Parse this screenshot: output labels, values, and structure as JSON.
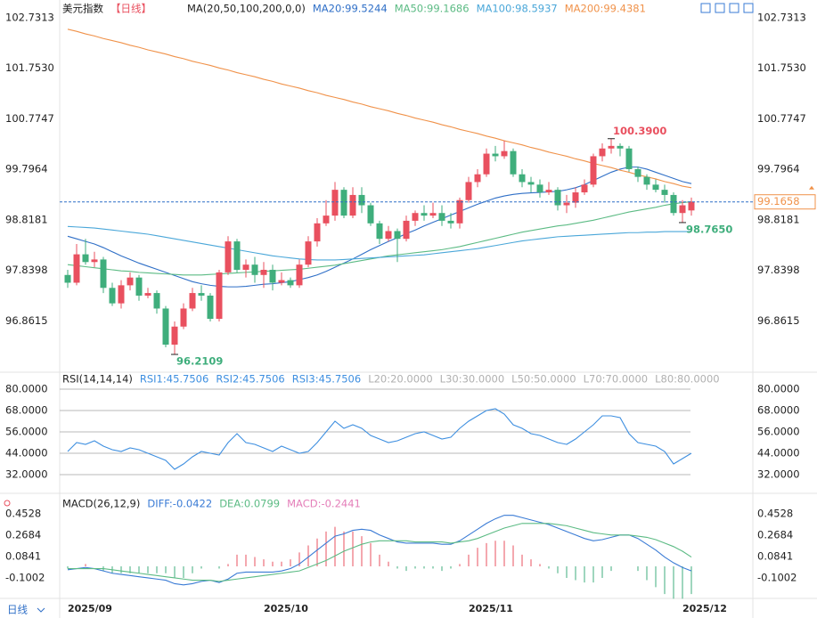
{
  "chart_data": [
    {
      "type": "candlestick",
      "title": "美元指数",
      "subtitle": "【日线】",
      "indicator": "MA(20,50,100,200,0,0)",
      "categories": [
        "2025/09",
        null,
        null,
        null,
        null,
        null,
        null,
        null,
        null,
        null,
        null,
        null,
        null,
        null,
        null,
        null,
        null,
        null,
        null,
        null,
        null,
        null,
        "2025/10",
        null,
        null,
        null,
        null,
        null,
        null,
        null,
        null,
        null,
        null,
        null,
        null,
        null,
        null,
        null,
        null,
        null,
        null,
        null,
        null,
        null,
        null,
        "2025/11",
        null,
        null,
        null,
        null,
        null,
        null,
        null,
        null,
        null,
        null,
        null,
        null,
        null,
        null,
        null,
        null,
        null,
        null,
        null,
        null,
        null,
        null,
        null,
        "2025/12",
        null
      ],
      "open": [
        97.75,
        97.6,
        98.15,
        98.0,
        98.05,
        97.5,
        97.2,
        97.55,
        97.7,
        97.35,
        97.4,
        97.1,
        96.4,
        96.75,
        97.1,
        97.4,
        97.35,
        96.9,
        97.8,
        98.4,
        97.85,
        97.95,
        97.75,
        97.85,
        97.6,
        97.65,
        97.55,
        97.95,
        98.4,
        98.75,
        98.9,
        99.4,
        98.9,
        99.3,
        99.1,
        98.75,
        98.45,
        98.6,
        98.45,
        98.8,
        98.95,
        98.9,
        98.95,
        98.8,
        98.75,
        99.2,
        99.55,
        99.7,
        100.1,
        100.05,
        100.15,
        99.7,
        99.55,
        99.5,
        99.35,
        99.4,
        99.1,
        99.15,
        99.35,
        99.5,
        100.05,
        100.2,
        100.25,
        100.2,
        99.8,
        99.65,
        99.5,
        99.4,
        99.3,
        98.95,
        99.0
      ],
      "high": [
        97.85,
        98.35,
        98.45,
        98.2,
        98.1,
        97.6,
        97.65,
        97.8,
        97.75,
        97.5,
        97.45,
        97.15,
        96.85,
        97.2,
        97.5,
        97.55,
        97.4,
        97.85,
        98.5,
        98.45,
        98.05,
        98.1,
        98.0,
        97.95,
        97.8,
        97.7,
        98.05,
        98.5,
        98.85,
        99.2,
        99.55,
        99.45,
        99.45,
        99.45,
        99.15,
        98.8,
        98.7,
        98.65,
        98.9,
        99.0,
        99.1,
        99.15,
        99.1,
        98.95,
        99.25,
        99.65,
        99.8,
        100.2,
        100.25,
        100.35,
        100.2,
        99.8,
        99.65,
        99.6,
        99.55,
        99.45,
        99.3,
        99.45,
        99.6,
        100.1,
        100.3,
        100.39,
        100.3,
        100.25,
        99.85,
        99.7,
        99.6,
        99.5,
        99.35,
        99.2,
        99.25
      ],
      "low": [
        97.5,
        97.55,
        97.95,
        97.9,
        97.4,
        97.15,
        97.1,
        97.45,
        97.25,
        97.3,
        97.0,
        96.35,
        96.2109,
        96.7,
        97.05,
        97.25,
        96.85,
        96.85,
        97.75,
        97.8,
        97.7,
        97.6,
        97.5,
        97.45,
        97.55,
        97.5,
        97.5,
        97.9,
        98.3,
        98.7,
        98.8,
        98.85,
        98.85,
        98.95,
        98.7,
        98.35,
        98.4,
        98.0,
        98.4,
        98.7,
        98.8,
        98.85,
        98.7,
        98.65,
        98.65,
        99.15,
        99.45,
        99.65,
        99.95,
        100.0,
        99.65,
        99.45,
        99.35,
        99.25,
        99.3,
        99.0,
        98.95,
        99.05,
        99.3,
        99.45,
        99.95,
        100.1,
        100.05,
        99.75,
        99.55,
        99.4,
        99.35,
        99.15,
        98.9,
        98.765,
        98.9
      ],
      "close": [
        97.6,
        98.15,
        98.0,
        98.05,
        97.5,
        97.2,
        97.55,
        97.7,
        97.35,
        97.4,
        97.1,
        96.4,
        96.75,
        97.1,
        97.4,
        97.35,
        96.9,
        97.8,
        98.4,
        97.85,
        97.95,
        97.75,
        97.85,
        97.6,
        97.65,
        97.55,
        97.95,
        98.4,
        98.75,
        98.9,
        99.4,
        98.9,
        99.3,
        99.1,
        98.75,
        98.45,
        98.6,
        98.45,
        98.8,
        98.95,
        98.9,
        98.95,
        98.8,
        98.75,
        99.2,
        99.55,
        99.7,
        100.1,
        100.05,
        100.15,
        99.7,
        99.55,
        99.5,
        99.35,
        99.4,
        99.1,
        99.15,
        99.35,
        99.5,
        100.05,
        100.2,
        100.25,
        100.2,
        99.8,
        99.65,
        99.5,
        99.4,
        99.3,
        98.95,
        99.1,
        99.17
      ],
      "up_color": "#e9505f",
      "down_color": "#3fae7c",
      "series": [
        {
          "name": "MA20:99.5244",
          "color": "#2f6fc7",
          "values": [
            98.5,
            98.45,
            98.4,
            98.35,
            98.28,
            98.2,
            98.12,
            98.05,
            97.98,
            97.92,
            97.86,
            97.8,
            97.74,
            97.68,
            97.62,
            97.58,
            97.55,
            97.53,
            97.52,
            97.52,
            97.53,
            97.55,
            97.57,
            97.58,
            97.6,
            97.62,
            97.66,
            97.7,
            97.75,
            97.82,
            97.9,
            97.98,
            98.06,
            98.15,
            98.24,
            98.32,
            98.4,
            98.47,
            98.55,
            98.62,
            98.7,
            98.77,
            98.84,
            98.91,
            98.98,
            99.05,
            99.12,
            99.18,
            99.24,
            99.28,
            99.31,
            99.33,
            99.34,
            99.35,
            99.36,
            99.37,
            99.4,
            99.44,
            99.5,
            99.58,
            99.66,
            99.74,
            99.8,
            99.84,
            99.84,
            99.8,
            99.74,
            99.68,
            99.62,
            99.56,
            99.52
          ]
        },
        {
          "name": "MA50:99.1686",
          "color": "#5cbb84",
          "values": [
            97.95,
            97.93,
            97.91,
            97.89,
            97.87,
            97.85,
            97.83,
            97.82,
            97.8,
            97.79,
            97.78,
            97.77,
            97.76,
            97.75,
            97.75,
            97.75,
            97.76,
            97.77,
            97.78,
            97.79,
            97.8,
            97.81,
            97.82,
            97.83,
            97.84,
            97.85,
            97.86,
            97.88,
            97.9,
            97.92,
            97.94,
            97.97,
            98.0,
            98.03,
            98.06,
            98.09,
            98.12,
            98.14,
            98.16,
            98.18,
            98.2,
            98.22,
            98.24,
            98.27,
            98.3,
            98.34,
            98.38,
            98.42,
            98.46,
            98.5,
            98.54,
            98.58,
            98.61,
            98.64,
            98.67,
            98.7,
            98.72,
            98.75,
            98.78,
            98.81,
            98.85,
            98.89,
            98.93,
            98.97,
            99.0,
            99.03,
            99.06,
            99.1,
            99.13,
            99.15,
            99.17
          ]
        },
        {
          "name": "MA100:98.5937",
          "color": "#4aa7d9",
          "values": [
            98.69,
            98.68,
            98.67,
            98.66,
            98.64,
            98.62,
            98.6,
            98.58,
            98.56,
            98.54,
            98.51,
            98.48,
            98.45,
            98.42,
            98.39,
            98.36,
            98.33,
            98.3,
            98.27,
            98.24,
            98.21,
            98.18,
            98.15,
            98.12,
            98.1,
            98.08,
            98.06,
            98.05,
            98.04,
            98.04,
            98.04,
            98.05,
            98.06,
            98.07,
            98.08,
            98.09,
            98.1,
            98.11,
            98.12,
            98.13,
            98.14,
            98.16,
            98.18,
            98.2,
            98.22,
            98.24,
            98.26,
            98.29,
            98.32,
            98.35,
            98.38,
            98.41,
            98.43,
            98.45,
            98.47,
            98.49,
            98.5,
            98.51,
            98.52,
            98.53,
            98.54,
            98.55,
            98.56,
            98.57,
            98.57,
            98.58,
            98.58,
            98.59,
            98.59,
            98.59,
            98.59
          ]
        },
        {
          "name": "MA200:99.4381",
          "color": "#f0924a",
          "values": [
            102.51,
            102.47,
            102.42,
            102.38,
            102.33,
            102.29,
            102.25,
            102.2,
            102.16,
            102.11,
            102.07,
            102.03,
            101.98,
            101.94,
            101.89,
            101.85,
            101.81,
            101.76,
            101.72,
            101.67,
            101.63,
            101.59,
            101.54,
            101.5,
            101.45,
            101.41,
            101.37,
            101.32,
            101.28,
            101.23,
            101.19,
            101.15,
            101.1,
            101.06,
            101.01,
            100.97,
            100.93,
            100.88,
            100.84,
            100.79,
            100.75,
            100.71,
            100.66,
            100.62,
            100.57,
            100.53,
            100.49,
            100.44,
            100.4,
            100.35,
            100.31,
            100.27,
            100.22,
            100.18,
            100.13,
            100.09,
            100.05,
            100.0,
            99.96,
            99.91,
            99.87,
            99.83,
            99.78,
            99.74,
            99.69,
            99.65,
            99.61,
            99.56,
            99.52,
            99.47,
            99.44
          ]
        }
      ],
      "high_label": {
        "value": 100.39,
        "label": "100.3900"
      },
      "low_label": 96.2109,
      "recent_low_label": {
        "value": 98.765,
        "label": "98.7650"
      },
      "last_price": 99.1658,
      "ylim": [
        95.866,
        102.904
      ],
      "yticks": [
        102.7313,
        {
          "value": 101.753,
          "label": "101.7530"
        },
        100.7747,
        99.7964,
        98.8181,
        97.8398,
        96.8615
      ],
      "grid": false
    },
    {
      "type": "line",
      "title": "RSI(14,14,14)",
      "series": [
        {
          "name": "RSI1:45.7506",
          "color": "#3e8fe0",
          "values": [
            45,
            50,
            49,
            51,
            48,
            46,
            45,
            47,
            46,
            44,
            42,
            40,
            35,
            38,
            42,
            45,
            44,
            43,
            50,
            55,
            50,
            49,
            47,
            45,
            48,
            46,
            44,
            45,
            50,
            56,
            62,
            58,
            60,
            58,
            54,
            52,
            50,
            51,
            53,
            55,
            56,
            54,
            52,
            53,
            58,
            62,
            65,
            68,
            69,
            66,
            60,
            58,
            55,
            54,
            52,
            50,
            49,
            52,
            56,
            60,
            65,
            65,
            64,
            55,
            50,
            49,
            48,
            45,
            38,
            41,
            44
          ]
        }
      ],
      "legend": [
        "RSI2:45.7506",
        "RSI3:45.7506",
        "L20:20.0000",
        "L30:30.0000",
        "L50:50.0000",
        "L70:70.0000",
        "L80:80.0000"
      ],
      "ylim": [
        23.5,
        86
      ],
      "yticks": [
        {
          "value": 80,
          "label": "80.0000"
        },
        {
          "value": 68,
          "label": "68.0000"
        },
        {
          "value": 56,
          "label": "56.0000"
        },
        {
          "value": 44,
          "label": "44.0000"
        },
        {
          "value": 32,
          "label": "32.0000"
        }
      ],
      "grid": true
    },
    {
      "type": "macd",
      "title": "MACD(26,12,9)",
      "series": [
        {
          "name": "DIFF:-0.0422",
          "color": "#3a7bd5",
          "values": [
            -0.03,
            -0.02,
            -0.01,
            -0.02,
            -0.04,
            -0.06,
            -0.07,
            -0.08,
            -0.09,
            -0.1,
            -0.11,
            -0.12,
            -0.15,
            -0.16,
            -0.15,
            -0.13,
            -0.12,
            -0.14,
            -0.11,
            -0.06,
            -0.05,
            -0.05,
            -0.05,
            -0.05,
            -0.04,
            -0.02,
            0.02,
            0.08,
            0.14,
            0.2,
            0.26,
            0.28,
            0.31,
            0.32,
            0.31,
            0.27,
            0.24,
            0.21,
            0.2,
            0.2,
            0.2,
            0.2,
            0.19,
            0.19,
            0.22,
            0.27,
            0.32,
            0.37,
            0.41,
            0.44,
            0.44,
            0.42,
            0.4,
            0.38,
            0.36,
            0.33,
            0.3,
            0.27,
            0.24,
            0.22,
            0.23,
            0.25,
            0.27,
            0.27,
            0.24,
            0.19,
            0.14,
            0.08,
            0.03,
            -0.01,
            -0.04
          ]
        },
        {
          "name": "DEA:0.0799",
          "color": "#5cbb84",
          "values": [
            -0.02,
            -0.02,
            -0.02,
            -0.02,
            -0.02,
            -0.03,
            -0.04,
            -0.05,
            -0.06,
            -0.07,
            -0.08,
            -0.09,
            -0.1,
            -0.11,
            -0.12,
            -0.12,
            -0.12,
            -0.13,
            -0.12,
            -0.11,
            -0.1,
            -0.09,
            -0.08,
            -0.07,
            -0.06,
            -0.05,
            -0.04,
            -0.01,
            0.02,
            0.05,
            0.09,
            0.13,
            0.16,
            0.19,
            0.21,
            0.22,
            0.22,
            0.22,
            0.22,
            0.21,
            0.21,
            0.21,
            0.21,
            0.2,
            0.21,
            0.22,
            0.24,
            0.27,
            0.3,
            0.33,
            0.35,
            0.37,
            0.37,
            0.37,
            0.37,
            0.36,
            0.35,
            0.33,
            0.31,
            0.29,
            0.28,
            0.27,
            0.27,
            0.27,
            0.26,
            0.25,
            0.23,
            0.2,
            0.17,
            0.13,
            0.08
          ]
        },
        {
          "name": "MACD:-0.2441",
          "color": "#e47fb9",
          "bars": true,
          "values": [
            -0.02,
            0,
            0.02,
            0,
            -0.04,
            -0.06,
            -0.06,
            -0.06,
            -0.06,
            -0.06,
            -0.06,
            -0.06,
            -0.1,
            -0.1,
            -0.06,
            -0.02,
            0,
            -0.02,
            0.02,
            0.1,
            0.1,
            0.08,
            0.06,
            0.04,
            0.04,
            0.06,
            0.12,
            0.18,
            0.24,
            0.3,
            0.34,
            0.3,
            0.3,
            0.26,
            0.2,
            0.1,
            0.04,
            -0.02,
            -0.04,
            -0.02,
            -0.02,
            -0.02,
            -0.04,
            -0.02,
            0.02,
            0.1,
            0.16,
            0.2,
            0.22,
            0.22,
            0.18,
            0.1,
            0.06,
            0.02,
            -0.02,
            -0.06,
            -0.1,
            -0.12,
            -0.14,
            -0.14,
            -0.1,
            -0.04,
            0,
            0,
            -0.04,
            -0.12,
            -0.18,
            -0.24,
            -0.28,
            -0.28,
            -0.24
          ]
        }
      ],
      "ylim": [
        -0.277,
        0.568
      ],
      "yticks": [
        0.4528,
        0.2684,
        0.0841,
        -0.1002
      ],
      "grid": false
    },
    {
      "footer": "日线"
    }
  ]
}
